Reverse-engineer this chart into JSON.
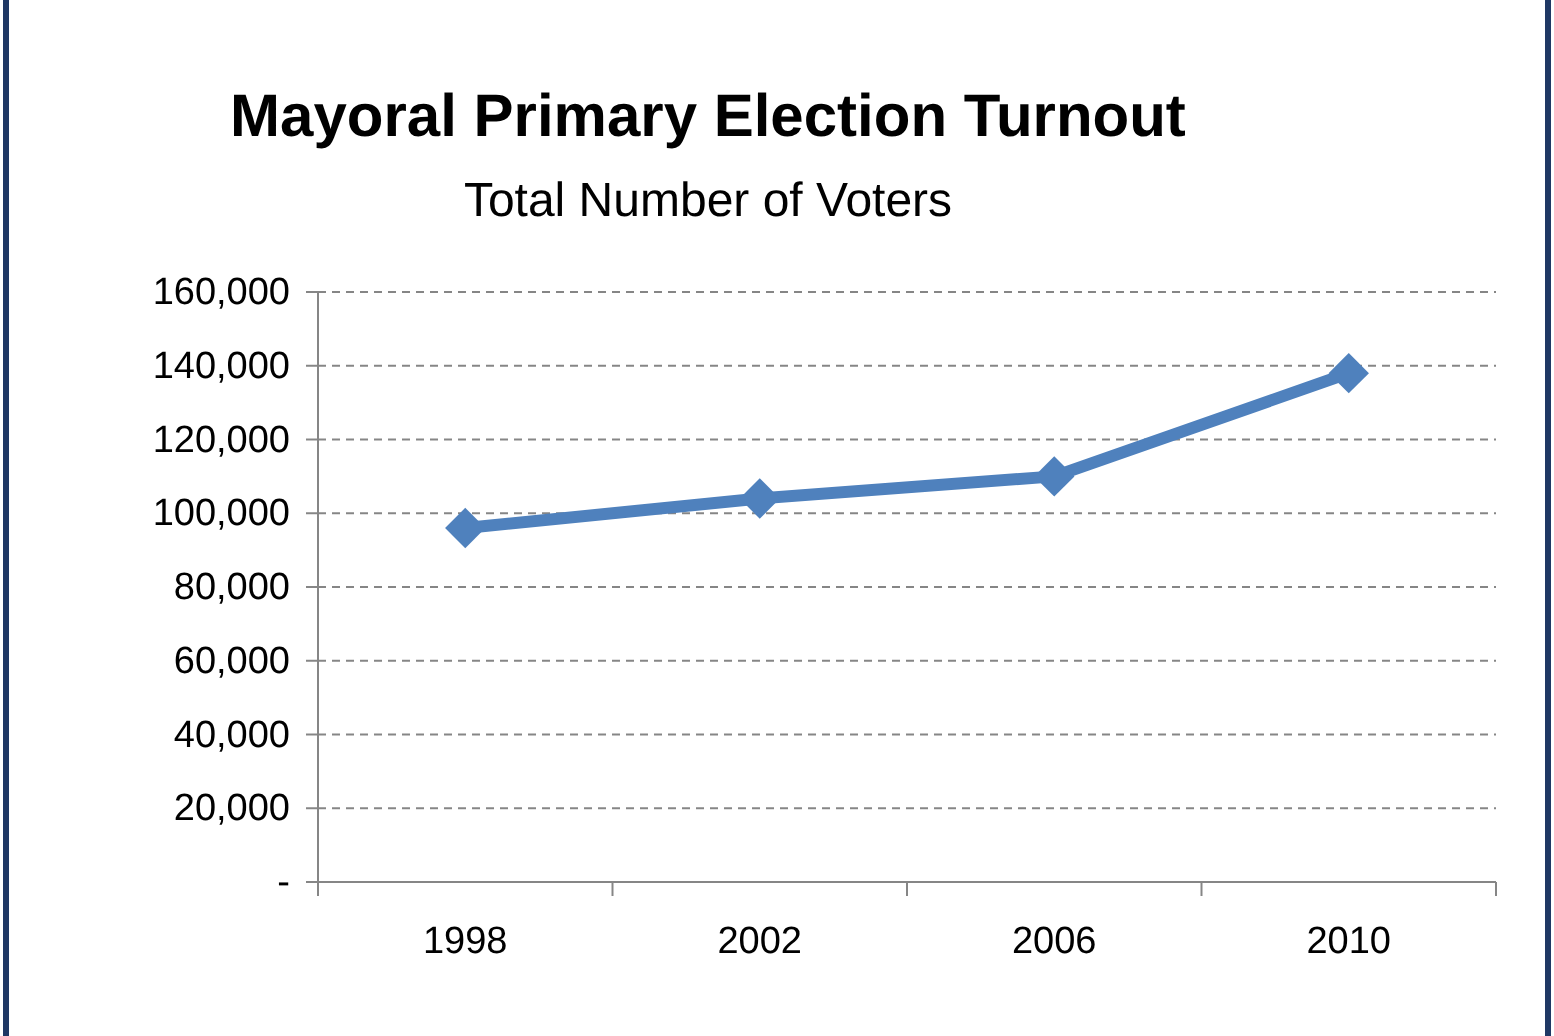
{
  "chart_data": {
    "type": "line",
    "title": "Mayoral Primary Election Turnout",
    "subtitle": "Total Number of Voters",
    "categories": [
      "1998",
      "2002",
      "2006",
      "2010"
    ],
    "series": [
      {
        "color": "#4f81bd",
        "values": [
          96000,
          104000,
          110000,
          138000
        ]
      }
    ],
    "ylim": [
      0,
      160000
    ],
    "yticks": [
      {
        "value": 0,
        "label": "-"
      },
      {
        "value": 20000,
        "label": "20,000"
      },
      {
        "value": 40000,
        "label": "40,000"
      },
      {
        "value": 60000,
        "label": "60,000"
      },
      {
        "value": 80000,
        "label": "80,000"
      },
      {
        "value": 100000,
        "label": "100,000"
      },
      {
        "value": 120000,
        "label": "120,000"
      },
      {
        "value": 140000,
        "label": "140,000"
      },
      {
        "value": 160000,
        "label": "160,000"
      }
    ],
    "grid": "y",
    "marker": "diamond",
    "line_style": "solid"
  }
}
